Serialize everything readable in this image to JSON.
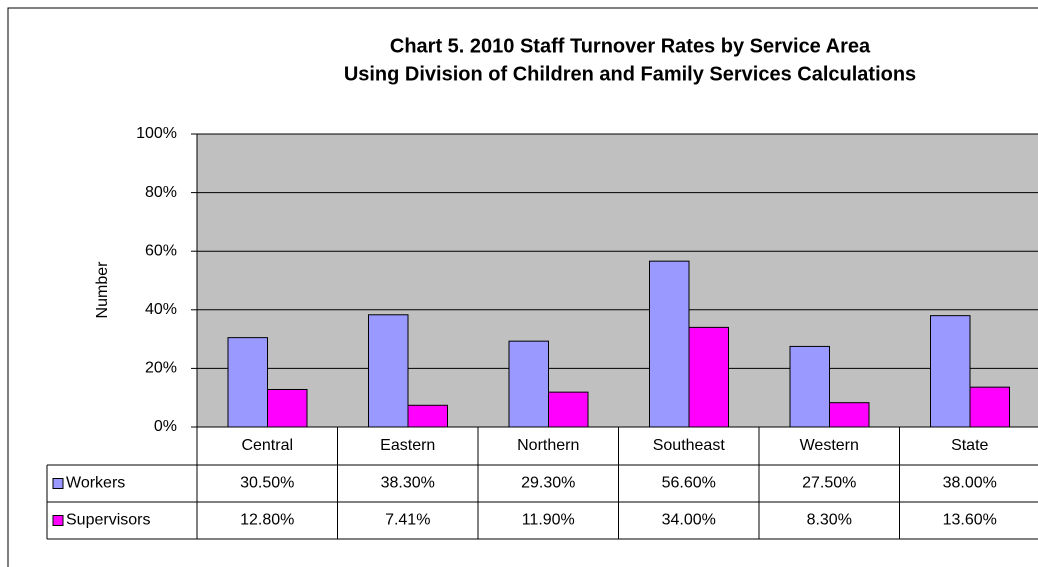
{
  "chart_data": {
    "type": "bar",
    "title": "Chart 5.  2010 Staff Turnover Rates by Service Area",
    "subtitle": "Using Division of Children and Family Services Calculations",
    "y_label": "Number",
    "categories": [
      "Central",
      "Eastern",
      "Northern",
      "Southeast",
      "Western",
      "State"
    ],
    "series": [
      {
        "name": "Workers",
        "color": "#9999ff",
        "values": [
          30.5,
          38.3,
          29.3,
          56.6,
          27.5,
          38.0
        ],
        "value_labels": [
          "30.50%",
          "38.30%",
          "29.30%",
          "56.60%",
          "27.50%",
          "38.00%"
        ]
      },
      {
        "name": "Supervisors",
        "color": "#ff00ff",
        "values": [
          12.8,
          7.41,
          11.9,
          34.0,
          8.3,
          13.6
        ],
        "value_labels": [
          "12.80%",
          "7.41%",
          "11.90%",
          "34.00%",
          "8.30%",
          "13.60%"
        ]
      }
    ],
    "ylim": [
      0,
      100
    ],
    "yticks": [
      {
        "value": 0,
        "label": "0%"
      },
      {
        "value": 20,
        "label": "20%"
      },
      {
        "value": 40,
        "label": "40%"
      },
      {
        "value": 60,
        "label": "60%"
      },
      {
        "value": 80,
        "label": "80%"
      },
      {
        "value": 100,
        "label": "100%"
      }
    ],
    "grid": true,
    "plot_background": "#c0c0c0"
  }
}
